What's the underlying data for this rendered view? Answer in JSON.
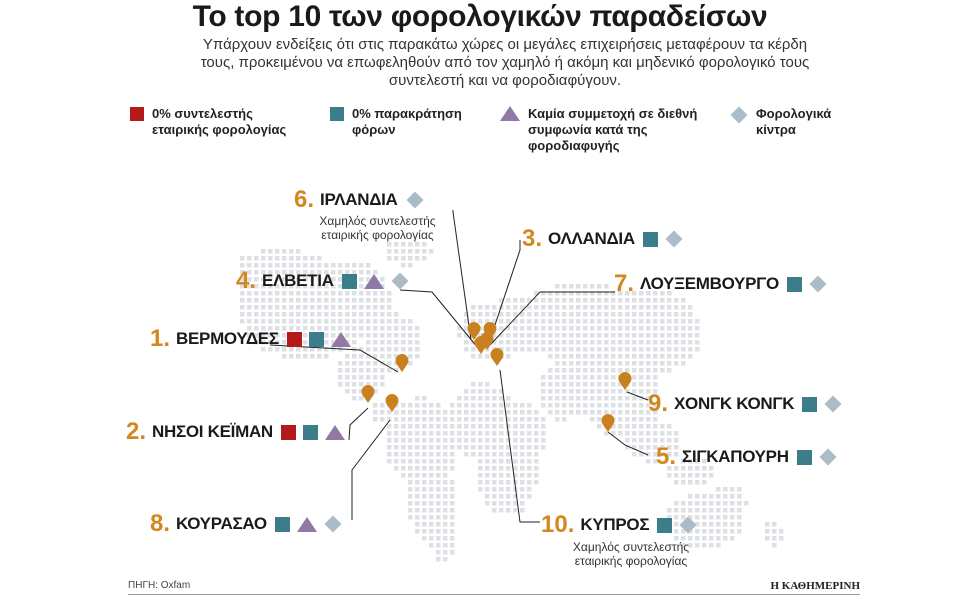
{
  "title": "Το top 10 των φορολογικών παραδείσων",
  "subtitle": "Υπάρχουν ενδείξεις ότι στις παρακάτω χώρες οι μεγάλες επιχειρήσεις μεταφέρουν τα κέρδη τους, προκειμένου να επωφεληθούν από τον χαμηλό ή ακόμη και μηδενικό φορολογικό τους συντελεστή και να φοροδιαφύγουν.",
  "legend": [
    {
      "symbol": "red-square",
      "label": "0% συντελεστής εταιρικής φορολογίας"
    },
    {
      "symbol": "teal-square",
      "label": "0% παρακράτηση φόρων"
    },
    {
      "symbol": "purple-triangle",
      "label": "Καμία συμμετοχή σε διεθνή συμφωνία κατά της φοροδιαφυγής"
    },
    {
      "symbol": "gray-diamond",
      "label": "Φορολογικά κίντρα"
    }
  ],
  "countries": {
    "ireland": {
      "rank": "6.",
      "name": "ΙΡΛΑΝΔΙΑ",
      "note": "Χαμηλός συντελεστής εταιρικής φορολογίας"
    },
    "netherlands": {
      "rank": "3.",
      "name": "ΟΛΛΑΝΔΙΑ"
    },
    "switzerland": {
      "rank": "4.",
      "name": "ΕΛΒΕΤΙΑ"
    },
    "luxembourg": {
      "rank": "7.",
      "name": "ΛΟΥΞΕΜΒΟΥΡΓΟ"
    },
    "bermuda": {
      "rank": "1.",
      "name": "ΒΕΡΜΟΥΔΕΣ"
    },
    "cayman": {
      "rank": "2.",
      "name": "ΝΗΣΟΙ ΚΕΪΜΑΝ"
    },
    "hongkong": {
      "rank": "9.",
      "name": "ΧΟΝΓΚ ΚΟΝΓΚ"
    },
    "singapore": {
      "rank": "5.",
      "name": "ΣΙΓΚΑΠΟΥΡΗ"
    },
    "curacao": {
      "rank": "8.",
      "name": "ΚΟΥΡΑΣΑΟ"
    },
    "cyprus": {
      "rank": "10.",
      "name": "ΚΥΠΡΟΣ",
      "note": "Χαμηλός συντελεστής εταιρικής φορολογίας"
    }
  },
  "colors": {
    "rank": "#d2871f",
    "red": "#b31b1b",
    "teal": "#3b7d8a",
    "purple": "#8f7aa6",
    "diamond": "#a9bcc8",
    "map_dots": "#dde1e5",
    "pin": "#c9801f"
  },
  "source": "ΠΗΓΗ: Oxfam",
  "brand": "Η ΚΑΘΗΜΕΡΙΝΗ"
}
